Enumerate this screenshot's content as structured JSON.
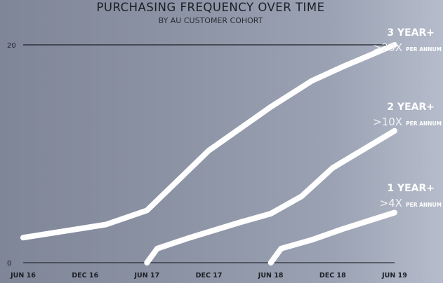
{
  "chart_data": {
    "type": "line",
    "title": "PURCHASING FREQUENCY OVER TIME",
    "subtitle": "BY AU CUSTOMER COHORT",
    "xlabel": "",
    "ylabel": "",
    "x_ticks": [
      "JUN 16",
      "DEC 16",
      "JUN 17",
      "DEC 17",
      "JUN 18",
      "DEC 18",
      "JUN 19"
    ],
    "y_ticks": [
      "0",
      "20"
    ],
    "xlim": [
      "2016-06",
      "2019-06"
    ],
    "ylim": [
      0,
      20
    ],
    "grid": false,
    "line_color": "#ffffff",
    "series": [
      {
        "name": "3 YEAR+",
        "annotation": ">20X",
        "unit": "PER ANNUM",
        "x": [
          "2016-06",
          "2017-02",
          "2017-06",
          "2017-12",
          "2018-06",
          "2018-10",
          "2019-01",
          "2019-06"
        ],
        "values": [
          2.3,
          3.5,
          4.8,
          10.3,
          14.3,
          16.7,
          18.0,
          20.0
        ]
      },
      {
        "name": "2 YEAR+",
        "annotation": ">10X",
        "unit": "PER ANNUM",
        "x": [
          "2017-06",
          "2017-07",
          "2017-10",
          "2018-03",
          "2018-06",
          "2018-09",
          "2018-12",
          "2019-06"
        ],
        "values": [
          0,
          1.3,
          2.25,
          3.7,
          4.5,
          6.1,
          8.7,
          12.1
        ]
      },
      {
        "name": "1 YEAR+",
        "annotation": ">4X",
        "unit": "PER ANNUM",
        "x": [
          "2018-06",
          "2018-07",
          "2018-10",
          "2019-01",
          "2019-06"
        ],
        "values": [
          0,
          1.3,
          2.1,
          3.1,
          4.6
        ]
      }
    ]
  }
}
